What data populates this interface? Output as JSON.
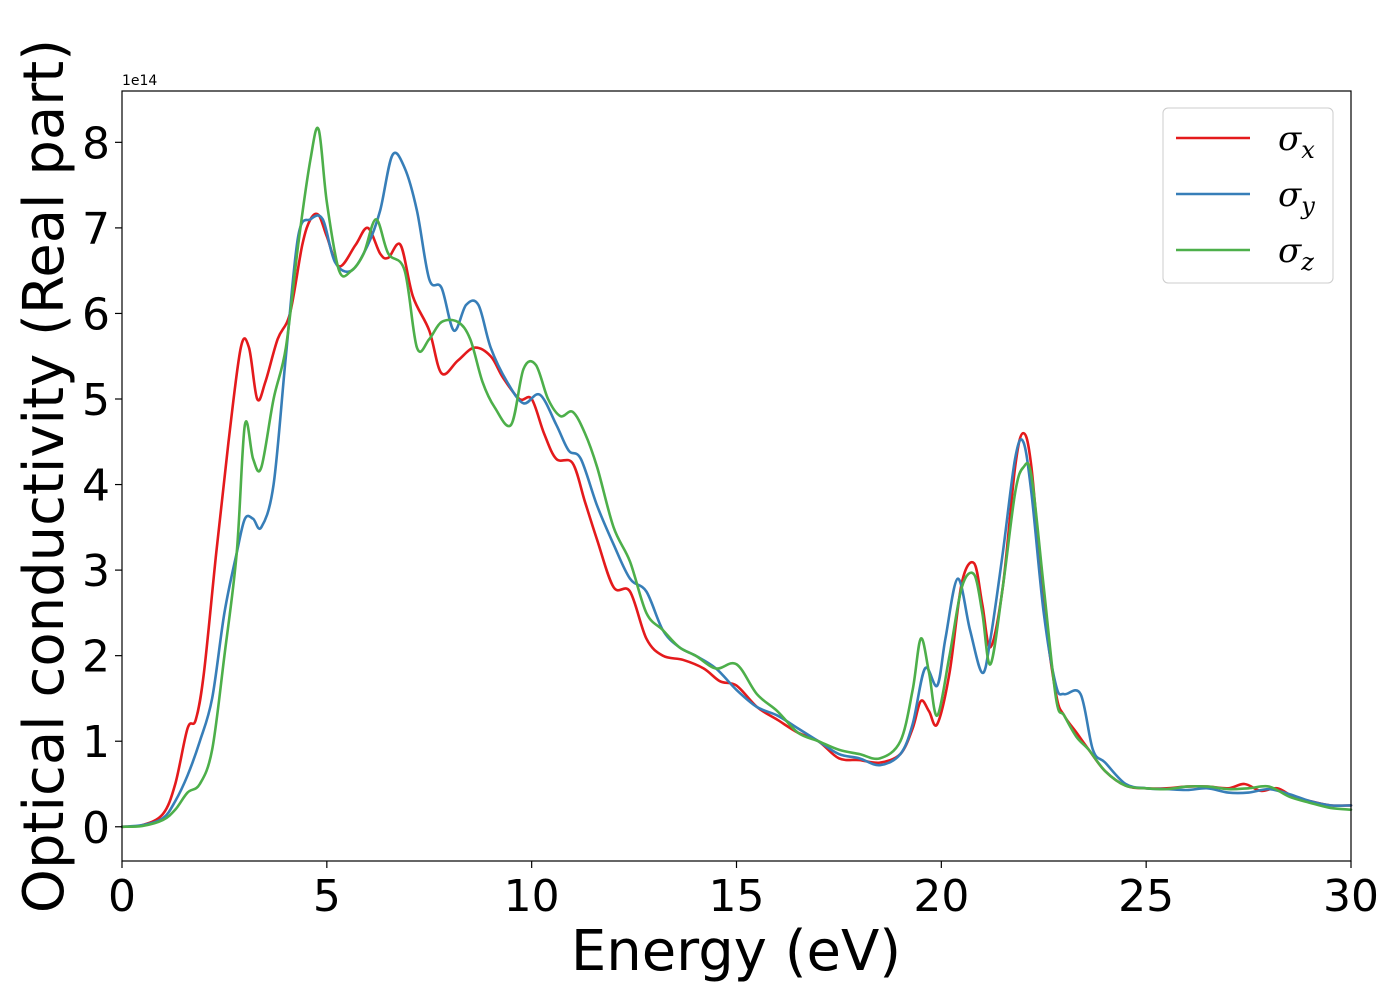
{
  "chart_data": {
    "type": "line",
    "xlabel": "Energy (eV)",
    "ylabel": "Optical conductivity (Real part)",
    "y_offset_label": "1e14",
    "xlim": [
      0,
      30
    ],
    "ylim": [
      -0.4,
      8.6
    ],
    "x_ticks": [
      0,
      5,
      10,
      15,
      20,
      25,
      30
    ],
    "x_tick_labels": [
      "0",
      "5",
      "10",
      "15",
      "20",
      "25",
      "30"
    ],
    "y_ticks": [
      0,
      1,
      2,
      3,
      4,
      5,
      6,
      7,
      8
    ],
    "y_tick_labels": [
      "0",
      "1",
      "2",
      "3",
      "4",
      "5",
      "6",
      "7",
      "8"
    ],
    "grid": false,
    "legend_position": "top-right",
    "series": [
      {
        "name": "σ_x",
        "symbol": "σ",
        "subscript": "x",
        "color": "#e41a1c",
        "x": [
          0,
          0.5,
          1.0,
          1.3,
          1.6,
          1.8,
          2.0,
          2.3,
          2.6,
          2.9,
          3.1,
          3.3,
          3.5,
          3.8,
          4.1,
          4.4,
          4.6,
          4.8,
          5.0,
          5.3,
          5.7,
          6.0,
          6.3,
          6.5,
          6.8,
          7.1,
          7.5,
          7.8,
          8.2,
          8.6,
          9.0,
          9.3,
          9.7,
          10.0,
          10.3,
          10.6,
          11.0,
          11.3,
          11.6,
          12.0,
          12.4,
          12.8,
          13.2,
          13.7,
          14.2,
          14.6,
          15.0,
          15.5,
          16.0,
          16.5,
          17.0,
          17.5,
          18.0,
          18.5,
          19.0,
          19.3,
          19.5,
          19.7,
          19.9,
          20.2,
          20.5,
          20.8,
          21.0,
          21.2,
          21.5,
          21.8,
          22.0,
          22.2,
          22.5,
          22.8,
          23.0,
          23.3,
          23.6,
          24.0,
          24.5,
          25.0,
          25.5,
          26.0,
          26.5,
          27.0,
          27.4,
          27.8,
          28.2,
          28.6,
          29.0,
          29.5,
          30.0
        ],
        "y": [
          0,
          0.02,
          0.15,
          0.5,
          1.15,
          1.25,
          1.8,
          3.2,
          4.5,
          5.6,
          5.6,
          5.0,
          5.2,
          5.7,
          6.0,
          6.8,
          7.1,
          7.15,
          6.9,
          6.55,
          6.8,
          7.0,
          6.7,
          6.65,
          6.8,
          6.2,
          5.8,
          5.3,
          5.45,
          5.6,
          5.5,
          5.25,
          5.0,
          5.0,
          4.6,
          4.3,
          4.25,
          3.8,
          3.35,
          2.8,
          2.75,
          2.2,
          2.0,
          1.95,
          1.85,
          1.7,
          1.65,
          1.4,
          1.25,
          1.1,
          1.0,
          0.8,
          0.78,
          0.75,
          0.85,
          1.15,
          1.47,
          1.35,
          1.2,
          1.8,
          2.85,
          3.08,
          2.6,
          2.1,
          2.8,
          4.2,
          4.6,
          4.2,
          2.6,
          1.55,
          1.3,
          1.1,
          0.9,
          0.65,
          0.48,
          0.45,
          0.45,
          0.47,
          0.47,
          0.45,
          0.5,
          0.42,
          0.45,
          0.35,
          0.3,
          0.25,
          0.25
        ]
      },
      {
        "name": "σ_y",
        "symbol": "σ",
        "subscript": "y",
        "color": "#377eb8",
        "x": [
          0,
          0.5,
          1.0,
          1.3,
          1.6,
          1.9,
          2.2,
          2.5,
          2.8,
          3.0,
          3.2,
          3.4,
          3.7,
          4.0,
          4.3,
          4.6,
          4.9,
          5.2,
          5.6,
          6.0,
          6.3,
          6.6,
          6.9,
          7.2,
          7.5,
          7.8,
          8.1,
          8.4,
          8.7,
          9.0,
          9.4,
          9.8,
          10.2,
          10.6,
          10.9,
          11.2,
          11.6,
          12.0,
          12.4,
          12.8,
          13.2,
          13.6,
          14.0,
          14.5,
          15.0,
          15.5,
          16.0,
          16.5,
          17.0,
          17.5,
          18.0,
          18.5,
          19.0,
          19.3,
          19.6,
          19.9,
          20.1,
          20.4,
          20.7,
          21.0,
          21.2,
          21.5,
          21.8,
          22.0,
          22.2,
          22.5,
          22.8,
          23.0,
          23.4,
          23.7,
          24.0,
          24.5,
          25.0,
          25.5,
          26.0,
          26.5,
          27.0,
          27.5,
          28.0,
          28.5,
          29.0,
          29.5,
          30.0
        ],
        "y": [
          0,
          0.02,
          0.1,
          0.3,
          0.6,
          1.0,
          1.5,
          2.5,
          3.2,
          3.6,
          3.6,
          3.5,
          4.0,
          5.5,
          6.9,
          7.1,
          7.1,
          6.6,
          6.5,
          6.8,
          7.2,
          7.85,
          7.7,
          7.2,
          6.4,
          6.3,
          5.8,
          6.1,
          6.1,
          5.6,
          5.2,
          4.95,
          5.05,
          4.7,
          4.4,
          4.3,
          3.75,
          3.3,
          2.9,
          2.75,
          2.3,
          2.1,
          2.0,
          1.85,
          1.6,
          1.4,
          1.3,
          1.15,
          1.0,
          0.85,
          0.8,
          0.72,
          0.85,
          1.2,
          1.85,
          1.65,
          2.2,
          2.9,
          2.3,
          1.8,
          2.2,
          3.2,
          4.3,
          4.5,
          3.9,
          2.5,
          1.65,
          1.55,
          1.55,
          0.9,
          0.75,
          0.5,
          0.45,
          0.44,
          0.43,
          0.45,
          0.4,
          0.4,
          0.44,
          0.38,
          0.3,
          0.25,
          0.25
        ]
      },
      {
        "name": "σ_z",
        "symbol": "σ",
        "subscript": "z",
        "color": "#4daf4a",
        "x": [
          0,
          0.5,
          1.0,
          1.3,
          1.6,
          1.9,
          2.2,
          2.5,
          2.8,
          3.0,
          3.2,
          3.4,
          3.7,
          4.0,
          4.3,
          4.6,
          4.8,
          5.0,
          5.3,
          5.6,
          5.9,
          6.2,
          6.5,
          6.9,
          7.2,
          7.5,
          7.8,
          8.2,
          8.5,
          8.8,
          9.1,
          9.5,
          9.8,
          10.1,
          10.4,
          10.7,
          11.0,
          11.3,
          11.6,
          12.0,
          12.4,
          12.8,
          13.2,
          13.6,
          14.0,
          14.5,
          15.0,
          15.5,
          16.0,
          16.5,
          17.0,
          17.5,
          18.0,
          18.5,
          19.0,
          19.3,
          19.5,
          19.7,
          19.9,
          20.2,
          20.5,
          20.8,
          21.0,
          21.2,
          21.5,
          21.8,
          22.0,
          22.2,
          22.5,
          22.8,
          23.0,
          23.3,
          23.6,
          24.0,
          24.5,
          25.0,
          25.5,
          26.0,
          26.5,
          27.0,
          27.5,
          28.0,
          28.5,
          29.0,
          29.5,
          30.0
        ],
        "y": [
          0,
          0.01,
          0.08,
          0.2,
          0.4,
          0.5,
          0.9,
          2.0,
          3.2,
          4.7,
          4.3,
          4.2,
          5.0,
          5.6,
          6.8,
          7.8,
          8.15,
          7.3,
          6.5,
          6.5,
          6.7,
          7.1,
          6.7,
          6.5,
          5.6,
          5.7,
          5.9,
          5.9,
          5.7,
          5.2,
          4.9,
          4.7,
          5.35,
          5.4,
          5.0,
          4.8,
          4.85,
          4.6,
          4.2,
          3.5,
          3.1,
          2.5,
          2.3,
          2.1,
          2.0,
          1.85,
          1.9,
          1.55,
          1.35,
          1.1,
          1.0,
          0.9,
          0.85,
          0.8,
          1.0,
          1.6,
          2.2,
          1.8,
          1.3,
          2.0,
          2.8,
          2.95,
          2.5,
          1.9,
          2.8,
          3.9,
          4.2,
          4.1,
          2.8,
          1.5,
          1.3,
          1.05,
          0.9,
          0.65,
          0.48,
          0.45,
          0.44,
          0.47,
          0.47,
          0.44,
          0.45,
          0.47,
          0.35,
          0.28,
          0.22,
          0.2
        ]
      }
    ]
  }
}
